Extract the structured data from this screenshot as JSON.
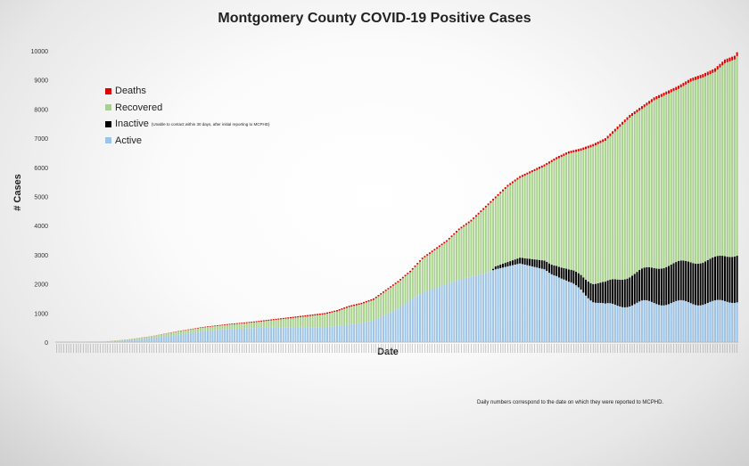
{
  "chart_data": {
    "type": "bar",
    "stacked": true,
    "title": "Montgomery County COVID-19 Positive Cases",
    "xlabel": "Date",
    "ylabel": "# Cases",
    "ylim": [
      0,
      10000
    ],
    "yticks": [
      0,
      1000,
      2000,
      3000,
      4000,
      5000,
      6000,
      7000,
      8000,
      9000,
      10000
    ],
    "grid": false,
    "legend_position": "top-left",
    "footnote": "Daily numbers correspond to the date on which they were reported to MCPHD.",
    "series": [
      {
        "name": "Deaths",
        "color": "#e00000"
      },
      {
        "name": "Recovered",
        "color": "#a9d18e"
      },
      {
        "name": "Inactive",
        "color": "#000000",
        "note": "(Unable to contact within 30 days, after initial reporting to MCPHD)"
      },
      {
        "name": "Active",
        "color": "#9dc3e6"
      }
    ],
    "keypoints": {
      "total": [
        [
          0,
          0
        ],
        [
          10,
          0
        ],
        [
          20,
          20
        ],
        [
          30,
          100
        ],
        [
          40,
          220
        ],
        [
          50,
          380
        ],
        [
          60,
          520
        ],
        [
          70,
          620
        ],
        [
          80,
          700
        ],
        [
          90,
          800
        ],
        [
          100,
          900
        ],
        [
          110,
          1000
        ],
        [
          115,
          1100
        ],
        [
          120,
          1250
        ],
        [
          125,
          1350
        ],
        [
          130,
          1500
        ],
        [
          135,
          1800
        ],
        [
          140,
          2100
        ],
        [
          145,
          2450
        ],
        [
          150,
          2900
        ],
        [
          155,
          3200
        ],
        [
          160,
          3500
        ],
        [
          165,
          3900
        ],
        [
          170,
          4200
        ],
        [
          175,
          4600
        ],
        [
          180,
          5000
        ],
        [
          185,
          5400
        ],
        [
          190,
          5700
        ],
        [
          195,
          5900
        ],
        [
          200,
          6100
        ],
        [
          205,
          6350
        ],
        [
          210,
          6550
        ],
        [
          215,
          6650
        ],
        [
          220,
          6800
        ],
        [
          225,
          7000
        ],
        [
          230,
          7400
        ],
        [
          235,
          7800
        ],
        [
          240,
          8100
        ],
        [
          245,
          8400
        ],
        [
          250,
          8600
        ],
        [
          255,
          8800
        ],
        [
          260,
          9050
        ],
        [
          265,
          9200
        ],
        [
          270,
          9400
        ],
        [
          274,
          9700
        ],
        [
          278,
          9830
        ],
        [
          279,
          9950
        ]
      ],
      "active": [
        [
          0,
          0
        ],
        [
          20,
          10
        ],
        [
          30,
          60
        ],
        [
          40,
          150
        ],
        [
          50,
          250
        ],
        [
          60,
          370
        ],
        [
          70,
          440
        ],
        [
          80,
          480
        ],
        [
          90,
          520
        ],
        [
          100,
          500
        ],
        [
          110,
          520
        ],
        [
          115,
          550
        ],
        [
          120,
          600
        ],
        [
          125,
          650
        ],
        [
          130,
          750
        ],
        [
          135,
          950
        ],
        [
          140,
          1150
        ],
        [
          145,
          1450
        ],
        [
          150,
          1700
        ],
        [
          155,
          1850
        ],
        [
          160,
          2000
        ],
        [
          165,
          2150
        ],
        [
          170,
          2250
        ],
        [
          175,
          2350
        ],
        [
          180,
          2500
        ],
        [
          185,
          2600
        ],
        [
          190,
          2700
        ],
        [
          195,
          2600
        ],
        [
          200,
          2500
        ],
        [
          205,
          2350
        ],
        [
          210,
          2000
        ],
        [
          215,
          1800
        ],
        [
          220,
          1450
        ],
        [
          225,
          1250
        ],
        [
          230,
          1250
        ],
        [
          235,
          1300
        ],
        [
          240,
          1350
        ],
        [
          245,
          1350
        ],
        [
          250,
          1350
        ],
        [
          255,
          1350
        ],
        [
          260,
          1350
        ],
        [
          265,
          1350
        ],
        [
          270,
          1350
        ],
        [
          275,
          1400
        ],
        [
          279,
          1450
        ]
      ],
      "inactive": [
        [
          0,
          0
        ],
        [
          178,
          0
        ],
        [
          180,
          100
        ],
        [
          185,
          150
        ],
        [
          190,
          200
        ],
        [
          195,
          250
        ],
        [
          200,
          300
        ],
        [
          205,
          350
        ],
        [
          210,
          420
        ],
        [
          215,
          500
        ],
        [
          220,
          620
        ],
        [
          225,
          750
        ],
        [
          230,
          900
        ],
        [
          235,
          1000
        ],
        [
          240,
          1100
        ],
        [
          245,
          1200
        ],
        [
          250,
          1300
        ],
        [
          255,
          1350
        ],
        [
          260,
          1400
        ],
        [
          265,
          1450
        ],
        [
          270,
          1500
        ],
        [
          275,
          1550
        ],
        [
          279,
          1600
        ]
      ],
      "deaths": [
        [
          0,
          0
        ],
        [
          40,
          5
        ],
        [
          60,
          20
        ],
        [
          80,
          30
        ],
        [
          100,
          40
        ],
        [
          120,
          45
        ],
        [
          150,
          50
        ],
        [
          180,
          60
        ],
        [
          200,
          70
        ],
        [
          230,
          90
        ],
        [
          260,
          110
        ],
        [
          279,
          130
        ]
      ],
      "count": 280
    },
    "x_tick_labels_count": 280
  }
}
